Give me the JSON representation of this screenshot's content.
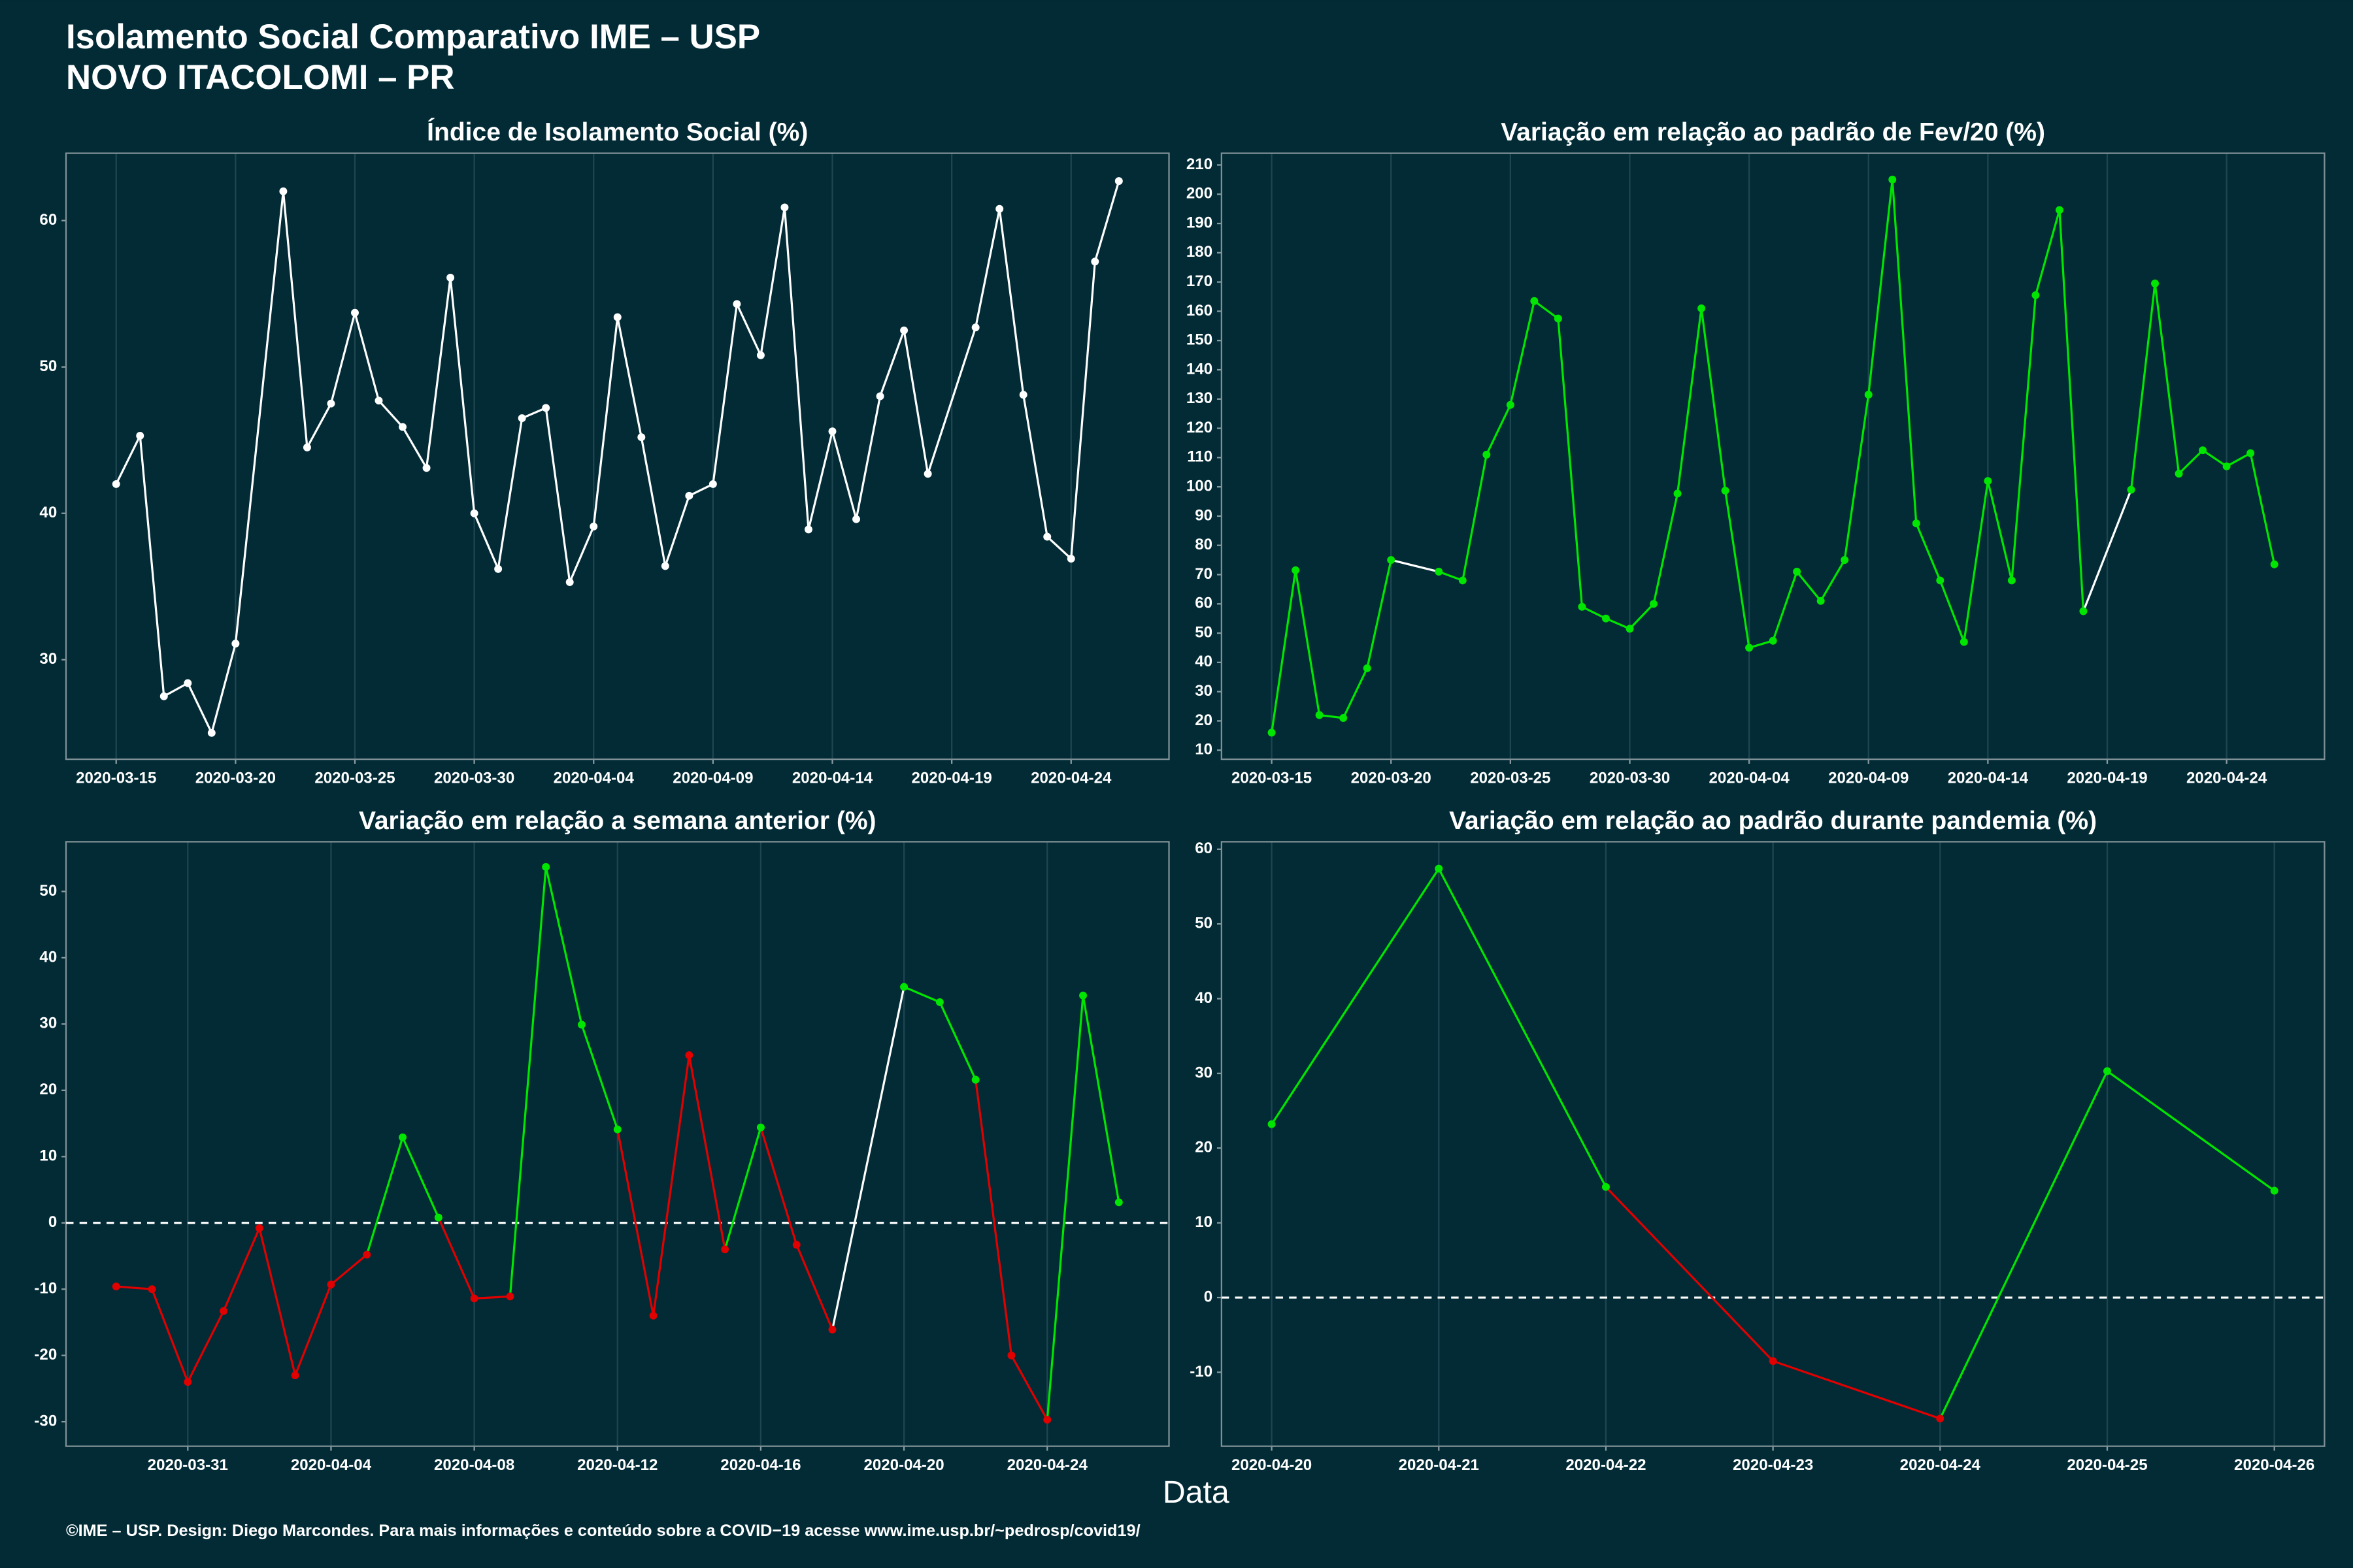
{
  "title": "Isolamento Social Comparativo IME – USP",
  "subtitle": "NOVO ITACOLOMI – PR",
  "x_label": "Data",
  "footer": "©IME – USP. Design: Diego Marcondes. Para mais informações e conteúdo sobre a COVID−19 acesse www.ime.usp.br/~pedrosp/covid19/",
  "chart_data": [
    {
      "type": "line",
      "title": "Índice de Isolamento Social (%)",
      "x": [
        "2020-03-15",
        "2020-03-16",
        "2020-03-17",
        "2020-03-18",
        "2020-03-19",
        "2020-03-20",
        "2020-03-22",
        "2020-03-23",
        "2020-03-24",
        "2020-03-25",
        "2020-03-26",
        "2020-03-27",
        "2020-03-28",
        "2020-03-29",
        "2020-03-30",
        "2020-03-31",
        "2020-04-01",
        "2020-04-02",
        "2020-04-03",
        "2020-04-04",
        "2020-04-05",
        "2020-04-06",
        "2020-04-07",
        "2020-04-08",
        "2020-04-09",
        "2020-04-10",
        "2020-04-11",
        "2020-04-12",
        "2020-04-13",
        "2020-04-14",
        "2020-04-15",
        "2020-04-16",
        "2020-04-17",
        "2020-04-18",
        "2020-04-20",
        "2020-04-21",
        "2020-04-22",
        "2020-04-23",
        "2020-04-24",
        "2020-04-25",
        "2020-04-26"
      ],
      "values": [
        42,
        45.3,
        27.5,
        28.4,
        25,
        31.1,
        62,
        44.5,
        47.5,
        53.7,
        47.7,
        45.9,
        43.1,
        56.1,
        40,
        36.2,
        46.5,
        47.2,
        35.3,
        39.1,
        53.4,
        45.2,
        36.4,
        41.2,
        42,
        54.3,
        50.8,
        60.9,
        38.9,
        45.6,
        39.6,
        48,
        52.5,
        42.7,
        52.7,
        60.8,
        48.1,
        38.4,
        36.9,
        57.2,
        62.7
      ],
      "color": "#ffffff",
      "xlim": [
        "2020-03-12T21:36:00Z",
        "2020-04-28T02:24:00Z"
      ],
      "xticks": [
        "2020-03-15",
        "2020-03-20",
        "2020-03-25",
        "2020-03-30",
        "2020-04-04",
        "2020-04-09",
        "2020-04-14",
        "2020-04-19",
        "2020-04-24"
      ],
      "ylim": [
        23.2,
        64.6
      ],
      "yticks": [
        30,
        40,
        50,
        60
      ],
      "grid": "x"
    },
    {
      "type": "line",
      "title": "Variação em relação ao padrão de Fev/20 (%)",
      "x": [
        "2020-03-15",
        "2020-03-16",
        "2020-03-17",
        "2020-03-18",
        "2020-03-19",
        "2020-03-20",
        "2020-03-22",
        "2020-03-23",
        "2020-03-24",
        "2020-03-25",
        "2020-03-26",
        "2020-03-27",
        "2020-03-28",
        "2020-03-29",
        "2020-03-30",
        "2020-03-31",
        "2020-04-01",
        "2020-04-02",
        "2020-04-03",
        "2020-04-04",
        "2020-04-05",
        "2020-04-06",
        "2020-04-07",
        "2020-04-08",
        "2020-04-09",
        "2020-04-10",
        "2020-04-11",
        "2020-04-12",
        "2020-04-13",
        "2020-04-14",
        "2020-04-15",
        "2020-04-16",
        "2020-04-17",
        "2020-04-18",
        "2020-04-20",
        "2020-04-21",
        "2020-04-22",
        "2020-04-23",
        "2020-04-24",
        "2020-04-25",
        "2020-04-26"
      ],
      "values": [
        16,
        71.5,
        22,
        21,
        38,
        75,
        71,
        68,
        111,
        128,
        163.5,
        157.5,
        59,
        55,
        51.5,
        60,
        97.7,
        161,
        98.7,
        45,
        47.4,
        71,
        61,
        75,
        131.5,
        205,
        87.5,
        68,
        47,
        102,
        68,
        165.5,
        194.6,
        57.5,
        99,
        169.5,
        104.5,
        112.5,
        107,
        111.5,
        73.5
      ],
      "color": "#00e600",
      "gap_color": "#ffffff",
      "xlim": [
        "2020-03-12T21:36:00Z",
        "2020-04-28T02:24:00Z"
      ],
      "xticks": [
        "2020-03-15",
        "2020-03-20",
        "2020-03-25",
        "2020-03-30",
        "2020-04-04",
        "2020-04-09",
        "2020-04-14",
        "2020-04-19",
        "2020-04-24"
      ],
      "ylim": [
        6.9,
        214
      ],
      "yticks": [
        10,
        20,
        30,
        40,
        50,
        60,
        70,
        80,
        90,
        100,
        110,
        120,
        130,
        140,
        150,
        160,
        170,
        180,
        190,
        200,
        210
      ],
      "grid": "x"
    },
    {
      "type": "line",
      "title": "Variação em relação a semana anterior (%)",
      "x": [
        "2020-03-29",
        "2020-03-30",
        "2020-03-31",
        "2020-04-01",
        "2020-04-02",
        "2020-04-03",
        "2020-04-04",
        "2020-04-05",
        "2020-04-06",
        "2020-04-07",
        "2020-04-08",
        "2020-04-09",
        "2020-04-10",
        "2020-04-11",
        "2020-04-12",
        "2020-04-13",
        "2020-04-14",
        "2020-04-15",
        "2020-04-16",
        "2020-04-17",
        "2020-04-18",
        "2020-04-20",
        "2020-04-21",
        "2020-04-22",
        "2020-04-23",
        "2020-04-24",
        "2020-04-25",
        "2020-04-26"
      ],
      "values": [
        -9.6,
        -10,
        -24,
        -13.3,
        -0.8,
        -23,
        -9.3,
        -4.8,
        12.9,
        0.8,
        -11.4,
        -11.1,
        53.7,
        29.9,
        14.1,
        -14,
        25.3,
        -4,
        14.4,
        -3.3,
        -16.1,
        35.6,
        33.3,
        21.6,
        -20,
        -29.7,
        34.3,
        3.1
      ],
      "colors": [
        "#e00000",
        "#e00000",
        "#e00000",
        "#e00000",
        "#e00000",
        "#e00000",
        "#e00000",
        "#e00000",
        "#00e600",
        "#00e600",
        "#e00000",
        "#e00000",
        "#00e600",
        "#00e600",
        "#00e600",
        "#e00000",
        "#e00000",
        "#e00000",
        "#00e600",
        "#e00000",
        "#e00000",
        "#00e600",
        "#00e600",
        "#00e600",
        "#e00000",
        "#e00000",
        "#00e600",
        "#00e600"
      ],
      "gap_color": "#ffffff",
      "xlim": [
        "2020-03-27T14:24:00Z",
        "2020-04-27T09:36:00Z"
      ],
      "xticks": [
        "2020-03-31",
        "2020-04-04",
        "2020-04-08",
        "2020-04-12",
        "2020-04-16",
        "2020-04-20",
        "2020-04-24"
      ],
      "ylim": [
        -33.7,
        57.5
      ],
      "yticks": [
        -30,
        -20,
        -10,
        0,
        10,
        20,
        30,
        40,
        50
      ],
      "grid": "x",
      "hline": 0
    },
    {
      "type": "line",
      "title": "Variação em relação ao padrão durante pandemia (%)",
      "x": [
        "2020-04-20",
        "2020-04-21",
        "2020-04-22",
        "2020-04-23",
        "2020-04-24",
        "2020-04-25",
        "2020-04-26"
      ],
      "values": [
        23.2,
        57.4,
        14.8,
        -8.5,
        -16.2,
        30.3,
        14.3
      ],
      "colors": [
        "#00e600",
        "#00e600",
        "#00e600",
        "#e00000",
        "#e00000",
        "#00e600",
        "#00e600"
      ],
      "gap_color": "#ffffff",
      "xlim": [
        "2020-04-19T16:48:00Z",
        "2020-04-26T07:12:00Z"
      ],
      "xticks": [
        "2020-04-20",
        "2020-04-21",
        "2020-04-22",
        "2020-04-23",
        "2020-04-24",
        "2020-04-25",
        "2020-04-26"
      ],
      "ylim": [
        -19.9,
        61
      ],
      "yticks": [
        -10,
        0,
        10,
        20,
        30,
        40,
        50,
        60
      ],
      "grid": "x",
      "hline": 0
    }
  ]
}
